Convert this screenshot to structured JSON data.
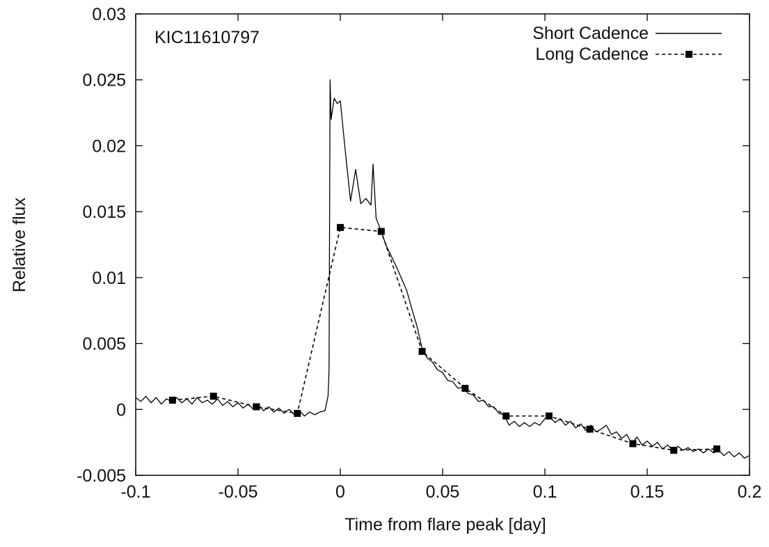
{
  "chart_data": {
    "type": "line",
    "xlabel": "Time from flare peak [day]",
    "ylabel": "Relative flux",
    "annotation": "KIC11610797",
    "legend": "upper right",
    "xlim": [
      -0.1,
      0.2
    ],
    "xticks": [
      -0.1,
      -0.05,
      0,
      0.05,
      0.1,
      0.15,
      0.2
    ],
    "ylim": [
      -0.005,
      0.03
    ],
    "yticks": [
      -0.005,
      0,
      0.005,
      0.01,
      0.015,
      0.02,
      0.025,
      0.03
    ],
    "series": [
      {
        "name": "Short Cadence",
        "color": "#000000",
        "style": "solid",
        "x": [
          -0.1,
          -0.0975,
          -0.095,
          -0.0925,
          -0.09,
          -0.0875,
          -0.085,
          -0.0825,
          -0.08,
          -0.0775,
          -0.075,
          -0.0725,
          -0.07,
          -0.0675,
          -0.065,
          -0.0625,
          -0.06,
          -0.0575,
          -0.055,
          -0.0525,
          -0.05,
          -0.0475,
          -0.045,
          -0.0425,
          -0.04,
          -0.0375,
          -0.035,
          -0.0325,
          -0.03,
          -0.0275,
          -0.025,
          -0.0225,
          -0.02,
          -0.0175,
          -0.015,
          -0.0125,
          -0.01,
          -0.0075,
          -0.006,
          -0.0055,
          -0.005,
          -0.0045,
          -0.003,
          -0.0015,
          0,
          0.0025,
          0.005,
          0.0075,
          0.01,
          0.0125,
          0.015,
          0.016,
          0.0175,
          0.02,
          0.0225,
          0.025,
          0.0275,
          0.03,
          0.0325,
          0.035,
          0.0375,
          0.04,
          0.0425,
          0.045,
          0.0475,
          0.05,
          0.0525,
          0.055,
          0.0575,
          0.06,
          0.0625,
          0.065,
          0.0675,
          0.07,
          0.0725,
          0.075,
          0.0775,
          0.08,
          0.0825,
          0.085,
          0.0875,
          0.09,
          0.0925,
          0.095,
          0.0975,
          0.1,
          0.1025,
          0.105,
          0.1075,
          0.11,
          0.1125,
          0.115,
          0.1175,
          0.12,
          0.1225,
          0.125,
          0.1275,
          0.13,
          0.1325,
          0.135,
          0.1375,
          0.14,
          0.1425,
          0.145,
          0.1475,
          0.15,
          0.1525,
          0.155,
          0.1575,
          0.16,
          0.1625,
          0.165,
          0.1675,
          0.17,
          0.1725,
          0.175,
          0.1775,
          0.18,
          0.1825,
          0.185,
          0.1875,
          0.19,
          0.1925,
          0.195,
          0.1975,
          0.2
        ],
        "values": [
          0.0009,
          0.0006,
          0.001,
          0.0005,
          0.0009,
          0.0004,
          0.0008,
          0.0006,
          0.0009,
          0.0005,
          0.0008,
          0.0004,
          0.0009,
          0.0005,
          0.0007,
          0.0004,
          0.0008,
          0.0003,
          0.0006,
          0.0002,
          0.0005,
          0.0001,
          0.0004,
          0,
          0.0003,
          -0.0001,
          0.0002,
          -0.0002,
          0.0001,
          -0.0003,
          0,
          -0.0004,
          -0.0001,
          -0.0005,
          -0.0002,
          -0.0004,
          -0.0002,
          -0.0001,
          0.001,
          0.003,
          0.025,
          0.022,
          0.0236,
          0.0232,
          0.0234,
          0.0195,
          0.0158,
          0.0182,
          0.0156,
          0.016,
          0.0155,
          0.0186,
          0.0145,
          0.0135,
          0.0124,
          0.0116,
          0.0108,
          0.0099,
          0.009,
          0.0076,
          0.0063,
          0.0046,
          0.0039,
          0.0036,
          0.003,
          0.0028,
          0.0022,
          0.0021,
          0.0016,
          0.0017,
          0.0012,
          0.0011,
          0.0006,
          0.0007,
          0.0002,
          0.0002,
          -0.0003,
          -0.0004,
          -0.0012,
          -0.0009,
          -0.0013,
          -0.001,
          -0.0013,
          -0.001,
          -0.0012,
          -0.0007,
          -0.0006,
          -0.001,
          -0.0007,
          -0.0012,
          -0.0009,
          -0.0014,
          -0.0011,
          -0.0016,
          -0.0012,
          -0.0017,
          -0.0015,
          -0.0012,
          -0.0019,
          -0.0017,
          -0.0022,
          -0.0019,
          -0.0026,
          -0.0021,
          -0.0027,
          -0.0024,
          -0.0028,
          -0.0025,
          -0.003,
          -0.0027,
          -0.0031,
          -0.0028,
          -0.0031,
          -0.0029,
          -0.0032,
          -0.003,
          -0.0033,
          -0.003,
          -0.0033,
          -0.0031,
          -0.0035,
          -0.0032,
          -0.0036,
          -0.0033,
          -0.0037,
          -0.0035
        ]
      },
      {
        "name": "Long Cadence",
        "color": "#000000",
        "style": "dashed",
        "marker": "square",
        "x": [
          -0.082,
          -0.062,
          -0.041,
          -0.021,
          0,
          0.02,
          0.04,
          0.061,
          0.081,
          0.102,
          0.122,
          0.143,
          0.163,
          0.184
        ],
        "values": [
          0.0007,
          0.001,
          0.0002,
          -0.0003,
          0.0138,
          0.0135,
          0.0044,
          0.0016,
          -0.0005,
          -0.0005,
          -0.0015,
          -0.0026,
          -0.0031,
          -0.003
        ]
      }
    ]
  }
}
